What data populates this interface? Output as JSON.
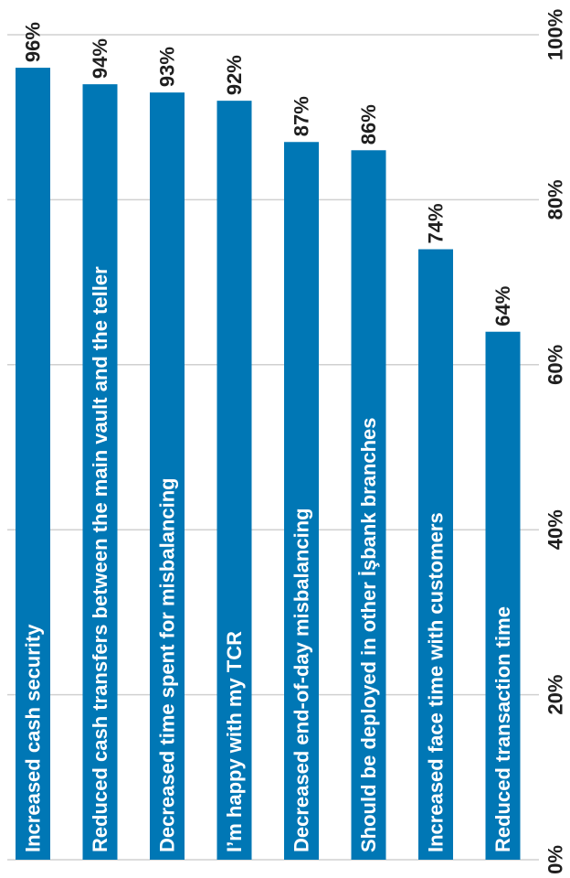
{
  "colors": {
    "bar": "#0077b5",
    "grid": "#d0d0d0",
    "text": "#1f1f1f",
    "bar_text": "#ffffff"
  },
  "chart_data": {
    "type": "bar",
    "orientation": "horizontal",
    "rotated": "90deg-clockwise",
    "categories": [
      "Increased cash security",
      "Reduced cash transfers between the main vault and the teller",
      "Decreased time spent for misbalancing",
      "I’m happy with my TCR",
      "Decreased end-of-day misbalancing",
      "Should be deployed in other İşbank branches",
      "Increased face time with customers",
      "Reduced transaction time"
    ],
    "values": [
      96,
      94,
      93,
      92,
      87,
      86,
      74,
      64
    ],
    "value_labels": [
      "96%",
      "94%",
      "93%",
      "92%",
      "87%",
      "86%",
      "74%",
      "64%"
    ],
    "xlim": [
      0,
      100
    ],
    "ticks": [
      0,
      20,
      40,
      60,
      80,
      100
    ],
    "tick_labels": [
      "0%",
      "20%",
      "40%",
      "60%",
      "80%",
      "100%"
    ],
    "grid": true,
    "legend": "none"
  }
}
